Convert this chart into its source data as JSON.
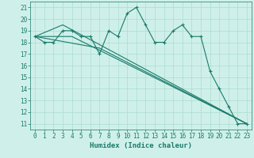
{
  "xlabel": "Humidex (Indice chaleur)",
  "bg_color": "#cff0ea",
  "grid_color": "#aaddcc",
  "line_color": "#1a7a6a",
  "xlim": [
    -0.5,
    23.5
  ],
  "ylim": [
    10.5,
    21.5
  ],
  "yticks": [
    11,
    12,
    13,
    14,
    15,
    16,
    17,
    18,
    19,
    20,
    21
  ],
  "xticks": [
    0,
    1,
    2,
    3,
    4,
    5,
    6,
    7,
    8,
    9,
    10,
    11,
    12,
    13,
    14,
    15,
    16,
    17,
    18,
    19,
    20,
    21,
    22,
    23
  ],
  "lines": [
    {
      "x": [
        0,
        1,
        2,
        3,
        4,
        5,
        6,
        7,
        8,
        9,
        10,
        11,
        12,
        13,
        14,
        15,
        16,
        17,
        18,
        19,
        20,
        21,
        22,
        23
      ],
      "y": [
        18.5,
        18.0,
        18.0,
        19.0,
        19.0,
        18.5,
        18.5,
        17.0,
        19.0,
        18.5,
        20.5,
        21.0,
        19.5,
        18.0,
        18.0,
        19.0,
        19.5,
        18.5,
        18.5,
        15.5,
        14.0,
        12.5,
        11.0,
        11.0
      ],
      "markers": true
    },
    {
      "x": [
        0,
        3,
        23
      ],
      "y": [
        18.5,
        19.5,
        11.0
      ],
      "markers": false
    },
    {
      "x": [
        0,
        4,
        23
      ],
      "y": [
        18.5,
        18.5,
        11.0
      ],
      "markers": false
    },
    {
      "x": [
        0,
        7,
        23
      ],
      "y": [
        18.5,
        17.5,
        11.0
      ],
      "markers": false
    }
  ]
}
